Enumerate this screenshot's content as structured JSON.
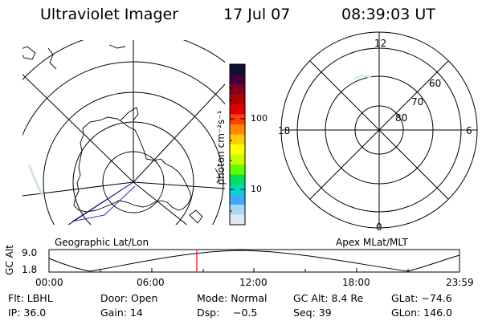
{
  "header": {
    "instrument": "Ultraviolet Imager",
    "date": "17 Jul 07",
    "time": "08:39:03 UT"
  },
  "geo_panel": {
    "label": "Geographic Lat/Lon"
  },
  "apex_panel": {
    "label": "Apex MLat/MLT",
    "mlt_labels": [
      "12",
      "18",
      "6",
      "0"
    ],
    "mlat_labels": [
      "60",
      "70",
      "80"
    ]
  },
  "colorbar": {
    "unit_label": "photon cm⁻²s⁻¹",
    "tick_labels": [
      "100",
      "10"
    ],
    "colors": [
      "#101030",
      "#400040",
      "#800020",
      "#b00000",
      "#e00000",
      "#ff4000",
      "#ff8800",
      "#ffcc00",
      "#ffff00",
      "#c8ff00",
      "#60ff00",
      "#00e060",
      "#00d8c8",
      "#40a8ff",
      "#a8d8f0",
      "#e0e8f0"
    ]
  },
  "orbit_plot": {
    "ylabel": "GC Alt",
    "ytick_labels": [
      "9.0",
      "1.8"
    ],
    "xtick_labels": [
      "00:00",
      "06:00",
      "12:00",
      "18:00",
      "23:59"
    ],
    "marker_time": "08:39",
    "marker_color": "#ff0000"
  },
  "status": {
    "filter": "Flt: LBHL",
    "door": "Door: Open",
    "mode": "Mode: Normal",
    "gc_alt": "GC Alt: 8.4 Re",
    "glat": "GLat: −74.6",
    "ip": "IP: 36.0",
    "gain": "Gain: 14",
    "dsp_label": "Dsp:",
    "dsp_value": "−0.5",
    "seq": "Seq: 39",
    "glon": "GLon: 146.0"
  }
}
